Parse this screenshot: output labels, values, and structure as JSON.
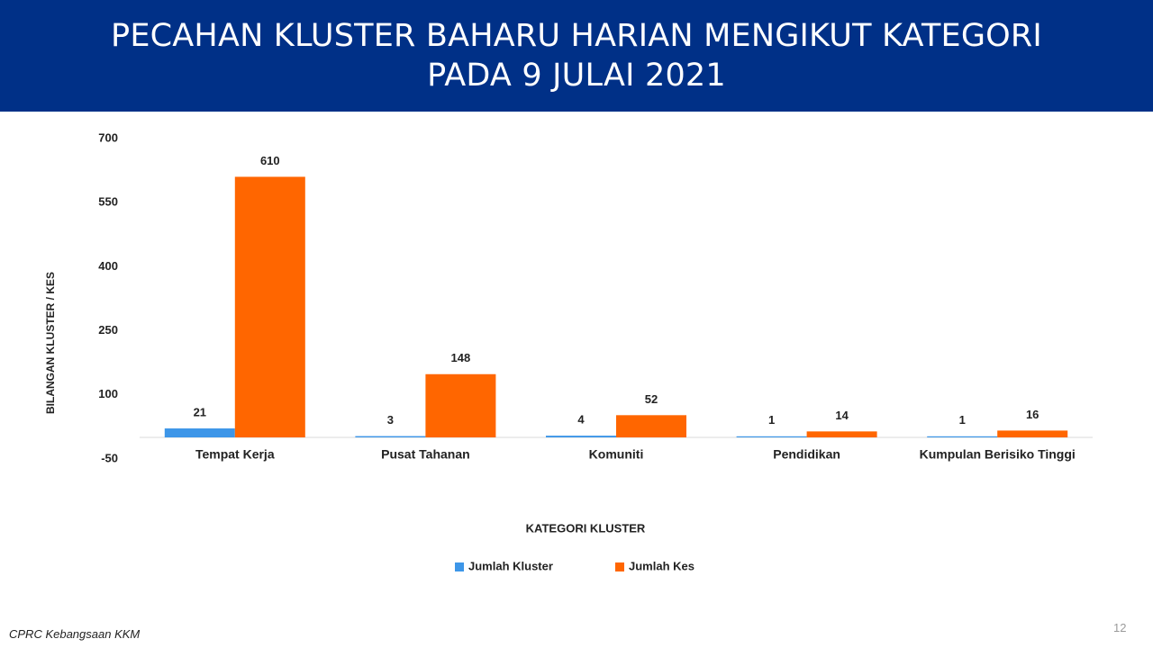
{
  "slide": {
    "title_line1": "PECAHAN KLUSTER BAHARU HARIAN MENGIKUT KATEGORI",
    "title_line2": "PADA 9 JULAI 2021",
    "source": "CPRC Kebangsaan KKM",
    "page_number": "12"
  },
  "colors": {
    "header_bg": "#003087",
    "series_kluster": "#3d96e8",
    "series_kes": "#ff6600"
  },
  "chart_data": {
    "type": "bar",
    "title": "PECAHAN KLUSTER BAHARU HARIAN MENGIKUT KATEGORI PADA 9 JULAI 2021",
    "xlabel": "KATEGORI KLUSTER",
    "ylabel": "BILANGAN KLUSTER / KES",
    "categories": [
      "Tempat Kerja",
      "Pusat Tahanan",
      "Komuniti",
      "Pendidikan",
      "Kumpulan Berisiko Tinggi"
    ],
    "series": [
      {
        "name": "Jumlah Kluster",
        "values": [
          21,
          3,
          4,
          1,
          1
        ]
      },
      {
        "name": "Jumlah Kes",
        "values": [
          610,
          148,
          52,
          14,
          16
        ]
      }
    ],
    "y_ticks": [
      -50,
      100,
      250,
      400,
      550,
      700
    ],
    "ylim": [
      -50,
      700
    ],
    "grid": false,
    "legend_position": "bottom",
    "data_labels": true
  }
}
